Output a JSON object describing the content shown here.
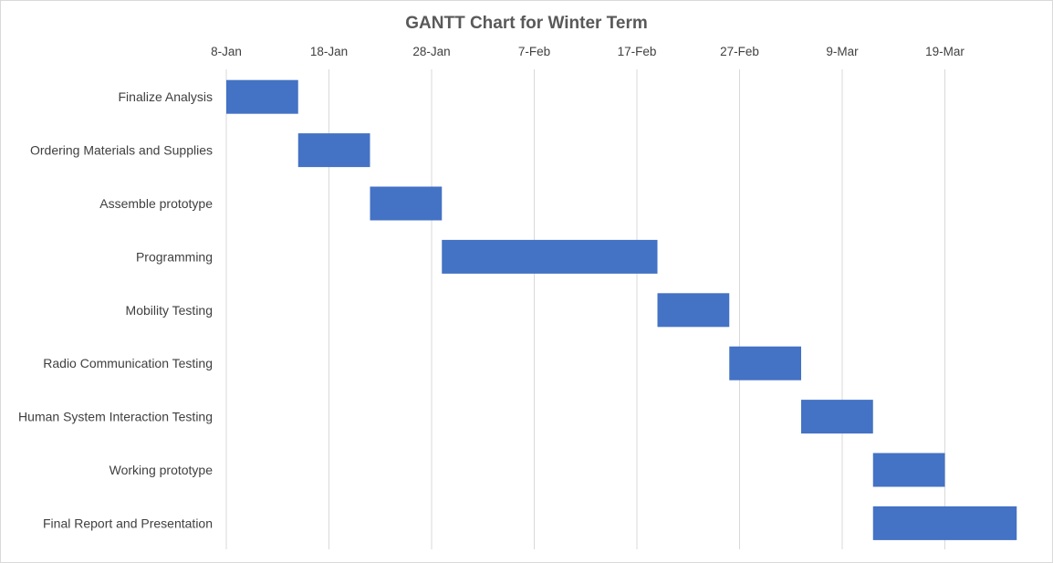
{
  "chart_data": {
    "type": "bar",
    "orientation": "horizontal",
    "stacked_gantt": true,
    "title": "GANTT Chart for Winter Term",
    "xlabel": "",
    "ylabel": "",
    "x_axis_position": "top",
    "grid": true,
    "legend": "none",
    "bar_color": "#4472C4",
    "xlim": [
      "2018-01-08",
      "2018-03-29"
    ],
    "x_ticks": [
      "2018-01-08",
      "2018-01-18",
      "2018-01-28",
      "2018-02-07",
      "2018-02-17",
      "2018-02-27",
      "2018-03-09",
      "2018-03-19"
    ],
    "x_tick_labels": [
      "8-Jan",
      "18-Jan",
      "28-Jan",
      "7-Feb",
      "17-Feb",
      "27-Feb",
      "9-Mar",
      "19-Mar"
    ],
    "tasks": [
      {
        "label": "Finalize Analysis",
        "start": "2018-01-08",
        "end": "2018-01-15"
      },
      {
        "label": "Ordering Materials and Supplies",
        "start": "2018-01-15",
        "end": "2018-01-22"
      },
      {
        "label": "Assemble prototype",
        "start": "2018-01-22",
        "end": "2018-01-29"
      },
      {
        "label": "Programming",
        "start": "2018-01-29",
        "end": "2018-02-19"
      },
      {
        "label": "Mobility Testing",
        "start": "2018-02-19",
        "end": "2018-02-26"
      },
      {
        "label": "Radio Communication Testing",
        "start": "2018-02-26",
        "end": "2018-03-05"
      },
      {
        "label": "Human System Interaction Testing",
        "start": "2018-03-05",
        "end": "2018-03-12"
      },
      {
        "label": "Working prototype",
        "start": "2018-03-12",
        "end": "2018-03-19"
      },
      {
        "label": "Final Report and Presentation",
        "start": "2018-03-12",
        "end": "2018-03-26"
      }
    ]
  }
}
